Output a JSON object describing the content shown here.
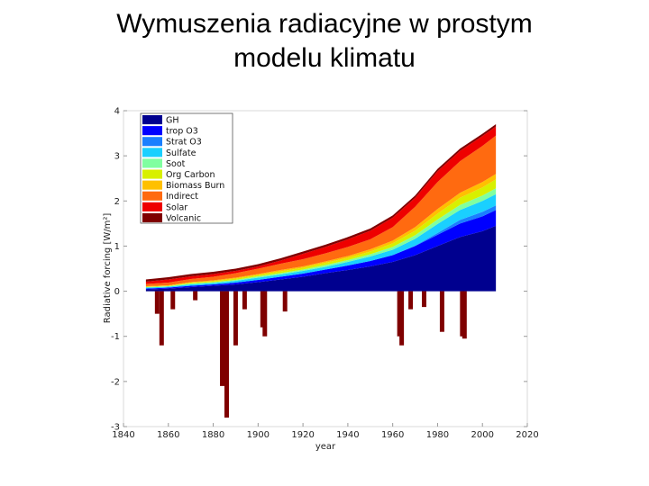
{
  "slide": {
    "title": "Wymuszenia radiacyjne w prostym\nmodelu klimatu"
  },
  "chart_data": {
    "type": "area",
    "xlabel": "year",
    "ylabel": "Radiative forcing [W/m²]",
    "xlim": [
      1840,
      2020
    ],
    "ylim": [
      -3,
      4
    ],
    "x_ticks": [
      1840,
      1860,
      1880,
      1900,
      1920,
      1940,
      1960,
      1980,
      2000,
      2020
    ],
    "y_ticks": [
      -3,
      -2,
      -1,
      0,
      1,
      2,
      3,
      4
    ],
    "legend_position": "top-left",
    "grid": false,
    "x": [
      1850,
      1860,
      1870,
      1880,
      1890,
      1900,
      1910,
      1920,
      1930,
      1940,
      1950,
      1960,
      1970,
      1980,
      1990,
      2000,
      2006
    ],
    "series": [
      {
        "name": "GH",
        "color": "#00008f",
        "values": [
          0.04,
          0.06,
          0.09,
          0.12,
          0.15,
          0.2,
          0.26,
          0.32,
          0.4,
          0.47,
          0.55,
          0.65,
          0.8,
          1.0,
          1.2,
          1.33,
          1.45
        ]
      },
      {
        "name": "trop O3",
        "color": "#0000ff",
        "values": [
          0.02,
          0.02,
          0.03,
          0.03,
          0.04,
          0.05,
          0.06,
          0.07,
          0.08,
          0.1,
          0.12,
          0.15,
          0.2,
          0.25,
          0.3,
          0.33,
          0.35
        ]
      },
      {
        "name": "Strat O3",
        "color": "#1a7fff",
        "values": [
          0,
          0,
          0,
          0,
          0,
          0,
          0,
          0,
          0,
          0,
          0,
          0,
          0.01,
          0.04,
          0.08,
          0.1,
          0.1
        ]
      },
      {
        "name": "Sulfate",
        "color": "#1ad0ff",
        "values": [
          0.02,
          0.02,
          0.03,
          0.03,
          0.04,
          0.05,
          0.05,
          0.06,
          0.06,
          0.08,
          0.1,
          0.12,
          0.15,
          0.2,
          0.22,
          0.24,
          0.25
        ]
      },
      {
        "name": "Soot",
        "color": "#80ffa0",
        "values": [
          0.01,
          0.01,
          0.02,
          0.02,
          0.02,
          0.03,
          0.03,
          0.03,
          0.04,
          0.04,
          0.05,
          0.06,
          0.08,
          0.1,
          0.11,
          0.12,
          0.13
        ]
      },
      {
        "name": "Org Carbon",
        "color": "#d8f000",
        "values": [
          0.01,
          0.01,
          0.02,
          0.02,
          0.03,
          0.03,
          0.04,
          0.04,
          0.05,
          0.05,
          0.06,
          0.08,
          0.1,
          0.13,
          0.16,
          0.18,
          0.2
        ]
      },
      {
        "name": "Biomass Burn",
        "color": "#ffc000",
        "values": [
          0.01,
          0.01,
          0.01,
          0.02,
          0.02,
          0.02,
          0.03,
          0.03,
          0.03,
          0.04,
          0.05,
          0.06,
          0.08,
          0.1,
          0.11,
          0.12,
          0.12
        ]
      },
      {
        "name": "Indirect",
        "color": "#ff6a10",
        "values": [
          0.05,
          0.06,
          0.07,
          0.08,
          0.1,
          0.12,
          0.14,
          0.16,
          0.18,
          0.2,
          0.22,
          0.3,
          0.45,
          0.6,
          0.7,
          0.8,
          0.85
        ]
      },
      {
        "name": "Solar",
        "color": "#ee0000",
        "values": [
          0.05,
          0.07,
          0.06,
          0.06,
          0.05,
          0.05,
          0.07,
          0.12,
          0.14,
          0.17,
          0.19,
          0.21,
          0.2,
          0.24,
          0.23,
          0.22,
          0.2
        ]
      },
      {
        "name": "Volcanic",
        "color": "#7f0000",
        "values": [
          0.05,
          0.05,
          0.05,
          0.05,
          0.05,
          0.05,
          0.05,
          0.05,
          0.05,
          0.05,
          0.05,
          0.05,
          0.05,
          0.05,
          0.05,
          0.05,
          0.05
        ]
      }
    ],
    "volcanic_events": [
      {
        "year": 1855,
        "depth": 0.5
      },
      {
        "year": 1857,
        "depth": 1.2
      },
      {
        "year": 1862,
        "depth": 0.4
      },
      {
        "year": 1872,
        "depth": 0.2
      },
      {
        "year": 1884,
        "depth": 2.1
      },
      {
        "year": 1886,
        "depth": 2.8
      },
      {
        "year": 1890,
        "depth": 1.2
      },
      {
        "year": 1894,
        "depth": 0.4
      },
      {
        "year": 1902,
        "depth": 0.8
      },
      {
        "year": 1903,
        "depth": 1.0
      },
      {
        "year": 1912,
        "depth": 0.45
      },
      {
        "year": 1963,
        "depth": 1.0
      },
      {
        "year": 1964,
        "depth": 1.2
      },
      {
        "year": 1968,
        "depth": 0.4
      },
      {
        "year": 1974,
        "depth": 0.35
      },
      {
        "year": 1982,
        "depth": 0.9
      },
      {
        "year": 1991,
        "depth": 1.0
      },
      {
        "year": 1992,
        "depth": 1.05
      }
    ]
  }
}
